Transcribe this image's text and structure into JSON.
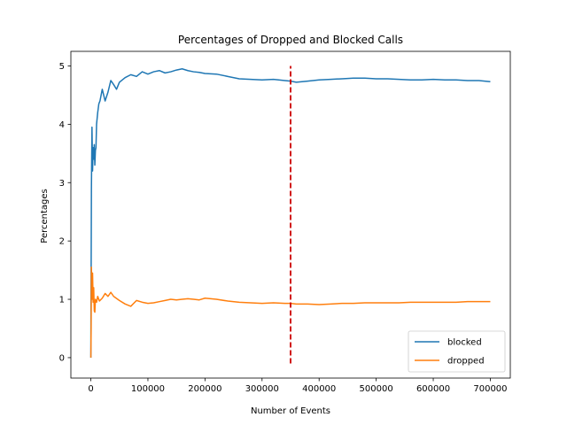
{
  "chart_data": {
    "type": "line",
    "title": "Percentages of Dropped and Blocked Calls",
    "xlabel": "Number of Events",
    "ylabel": "Percentages",
    "xlim": [
      -35000,
      735000
    ],
    "ylim": [
      -0.35,
      5.25
    ],
    "xticks": [
      0,
      100000,
      200000,
      300000,
      400000,
      500000,
      600000,
      700000
    ],
    "xtick_labels": [
      "0",
      "100000",
      "200000",
      "300000",
      "400000",
      "500000",
      "600000",
      "700000"
    ],
    "yticks": [
      0,
      1,
      2,
      3,
      4,
      5
    ],
    "ytick_labels": [
      "0",
      "1",
      "2",
      "3",
      "4",
      "5"
    ],
    "grid": false,
    "legend_position": "lower-right",
    "series": [
      {
        "name": "blocked",
        "color": "#1f77b4",
        "x": [
          0,
          1000,
          2000,
          3000,
          4000,
          5000,
          6000,
          7000,
          8000,
          9000,
          10000,
          12000,
          14000,
          16000,
          18000,
          20000,
          25000,
          30000,
          35000,
          40000,
          45000,
          50000,
          60000,
          70000,
          80000,
          90000,
          100000,
          110000,
          120000,
          130000,
          140000,
          150000,
          160000,
          170000,
          180000,
          190000,
          200000,
          220000,
          240000,
          260000,
          280000,
          300000,
          320000,
          340000,
          350000,
          360000,
          380000,
          400000,
          420000,
          440000,
          460000,
          480000,
          500000,
          520000,
          540000,
          560000,
          580000,
          600000,
          620000,
          640000,
          660000,
          680000,
          700000
        ],
        "y": [
          0.0,
          2.9,
          3.95,
          3.2,
          3.6,
          3.4,
          3.65,
          3.3,
          3.55,
          3.6,
          4.0,
          4.2,
          4.35,
          4.4,
          4.5,
          4.6,
          4.4,
          4.55,
          4.75,
          4.68,
          4.6,
          4.72,
          4.8,
          4.85,
          4.82,
          4.9,
          4.86,
          4.9,
          4.92,
          4.88,
          4.9,
          4.93,
          4.95,
          4.92,
          4.9,
          4.89,
          4.87,
          4.86,
          4.82,
          4.78,
          4.77,
          4.76,
          4.77,
          4.75,
          4.74,
          4.72,
          4.74,
          4.76,
          4.77,
          4.78,
          4.79,
          4.79,
          4.78,
          4.78,
          4.77,
          4.76,
          4.76,
          4.77,
          4.76,
          4.76,
          4.75,
          4.75,
          4.73
        ]
      },
      {
        "name": "dropped",
        "color": "#ff7f0e",
        "x": [
          0,
          500,
          1000,
          2000,
          3000,
          4000,
          5000,
          6000,
          7000,
          8000,
          10000,
          12000,
          15000,
          20000,
          25000,
          30000,
          35000,
          40000,
          50000,
          60000,
          70000,
          80000,
          90000,
          100000,
          110000,
          120000,
          130000,
          140000,
          150000,
          160000,
          170000,
          180000,
          190000,
          200000,
          220000,
          240000,
          260000,
          280000,
          300000,
          320000,
          340000,
          350000,
          360000,
          380000,
          400000,
          420000,
          440000,
          460000,
          480000,
          500000,
          520000,
          540000,
          560000,
          580000,
          600000,
          620000,
          640000,
          660000,
          680000,
          700000
        ],
        "y": [
          0.0,
          0.5,
          1.55,
          1.0,
          1.45,
          0.95,
          1.2,
          0.8,
          0.78,
          1.0,
          0.95,
          1.05,
          0.97,
          1.02,
          1.1,
          1.05,
          1.12,
          1.05,
          0.98,
          0.92,
          0.88,
          0.98,
          0.95,
          0.93,
          0.94,
          0.96,
          0.98,
          1.0,
          0.99,
          1.0,
          1.01,
          1.0,
          0.99,
          1.02,
          1.0,
          0.97,
          0.95,
          0.94,
          0.93,
          0.94,
          0.93,
          0.93,
          0.92,
          0.92,
          0.91,
          0.92,
          0.93,
          0.93,
          0.94,
          0.94,
          0.94,
          0.94,
          0.95,
          0.95,
          0.95,
          0.95,
          0.95,
          0.96,
          0.96,
          0.96
        ]
      }
    ],
    "annotations": [
      {
        "type": "vertical-dashed-line",
        "color": "#cc0000",
        "x": 350000,
        "y_range": [
          -0.1,
          5.0
        ]
      }
    ]
  }
}
